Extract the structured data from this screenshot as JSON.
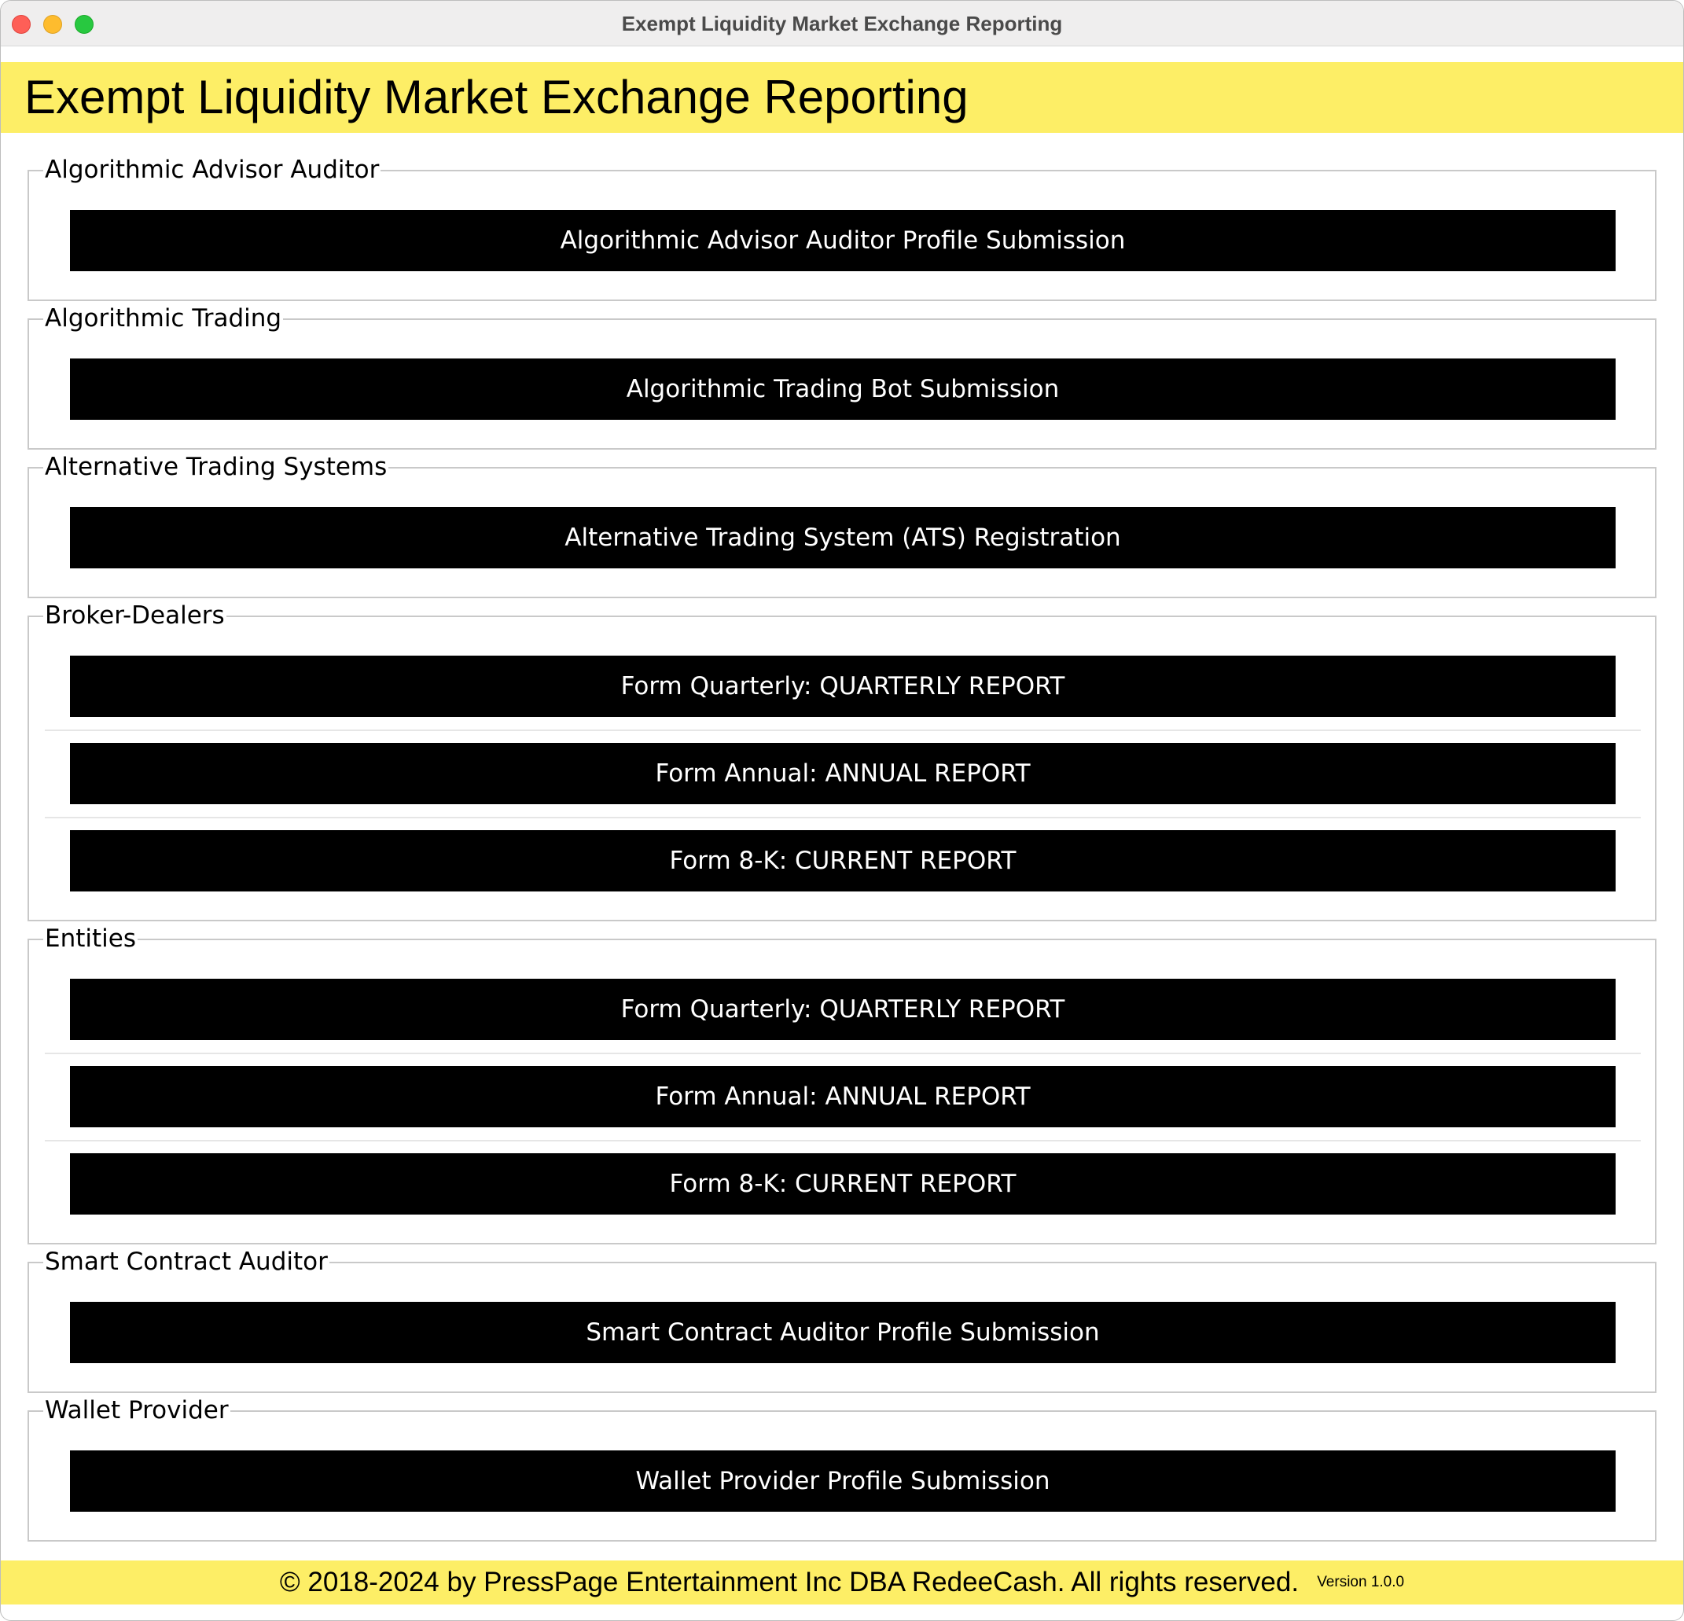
{
  "window": {
    "title": "Exempt Liquidity Market Exchange Reporting"
  },
  "header": {
    "title": "Exempt Liquidity Market Exchange Reporting"
  },
  "sections": [
    {
      "label": "Algorithmic Advisor Auditor",
      "buttons": [
        "Algorithmic Advisor Auditor Profile Submission"
      ]
    },
    {
      "label": "Algorithmic Trading",
      "buttons": [
        "Algorithmic Trading Bot Submission"
      ]
    },
    {
      "label": "Alternative Trading Systems",
      "buttons": [
        "Alternative Trading System (ATS) Registration"
      ]
    },
    {
      "label": "Broker-Dealers",
      "buttons": [
        "Form Quarterly: QUARTERLY REPORT",
        "Form Annual: ANNUAL REPORT",
        "Form 8-K: CURRENT REPORT"
      ]
    },
    {
      "label": "Entities",
      "buttons": [
        "Form Quarterly: QUARTERLY REPORT",
        "Form Annual: ANNUAL REPORT",
        "Form 8-K: CURRENT REPORT"
      ]
    },
    {
      "label": "Smart Contract Auditor",
      "buttons": [
        "Smart Contract Auditor Profile Submission"
      ]
    },
    {
      "label": "Wallet Provider",
      "buttons": [
        "Wallet Provider Profile Submission"
      ]
    }
  ],
  "footer": {
    "copyright": "© 2018-2024 by PressPage Entertainment Inc DBA RedeeCash. All rights reserved.",
    "version": "Version 1.0.0"
  },
  "colors": {
    "accent_yellow": "#fdee66",
    "button_black": "#000000",
    "button_text": "#ffffff"
  }
}
